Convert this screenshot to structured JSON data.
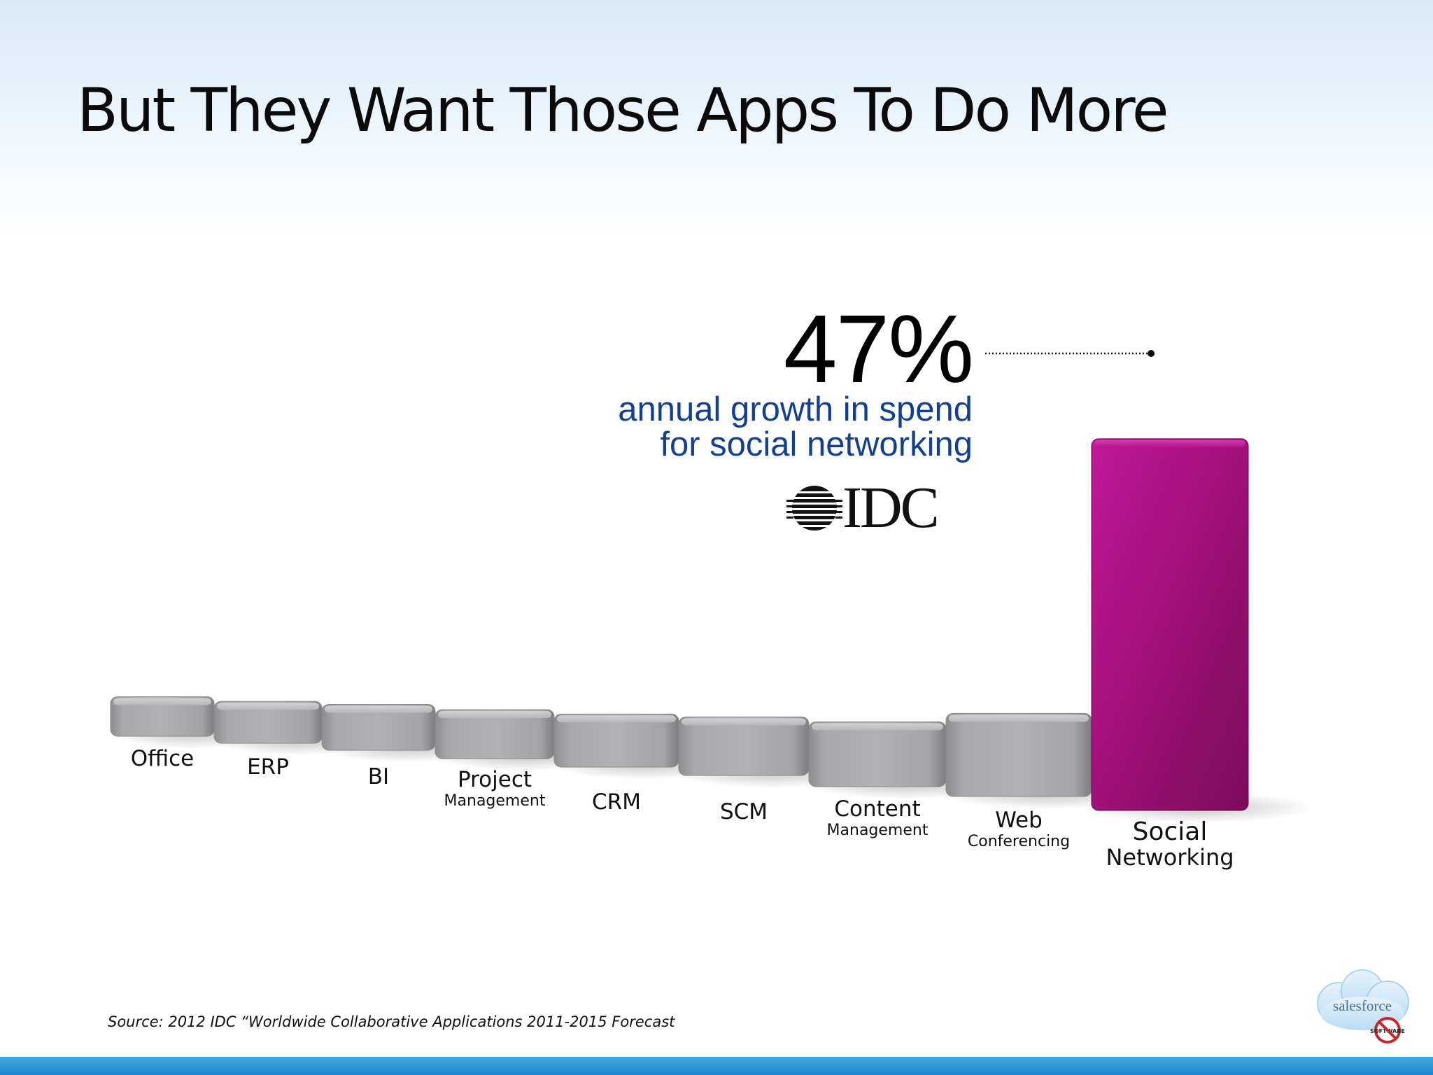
{
  "title": "But They Want Those Apps To Do More",
  "callout": {
    "value": "47%",
    "line1": "annual growth in spend",
    "line2": "for social networking",
    "logo_text": "IDC"
  },
  "source": "Source: 2012 IDC “Worldwide Collaborative Applications 2011-2015 Forecast",
  "logo": {
    "name": "salesforce",
    "badge": "SOFTWARE"
  },
  "colors": {
    "bar_gray": "#a3a3a5",
    "bar_highlight": "#a8117f",
    "callout_text": "#123f96",
    "bottom_bar": "#2b98d8"
  },
  "chart_data": {
    "type": "bar",
    "categories": [
      {
        "main": "Office",
        "sub": ""
      },
      {
        "main": "ERP",
        "sub": ""
      },
      {
        "main": "BI",
        "sub": ""
      },
      {
        "main": "Project",
        "sub": "Management"
      },
      {
        "main": "CRM",
        "sub": ""
      },
      {
        "main": "SCM",
        "sub": ""
      },
      {
        "main": "Content",
        "sub": "Management"
      },
      {
        "main": "Web",
        "sub": "Conferencing"
      },
      {
        "main": "Social",
        "sub": "Networking"
      }
    ],
    "values": [
      5,
      5.3,
      5.8,
      6.2,
      6.7,
      7.4,
      8.2,
      10.5,
      47
    ],
    "highlight_index": 8,
    "title": "",
    "xlabel": "",
    "ylabel": "",
    "ylim": [
      0,
      47
    ],
    "grid": false,
    "legend": "none"
  }
}
